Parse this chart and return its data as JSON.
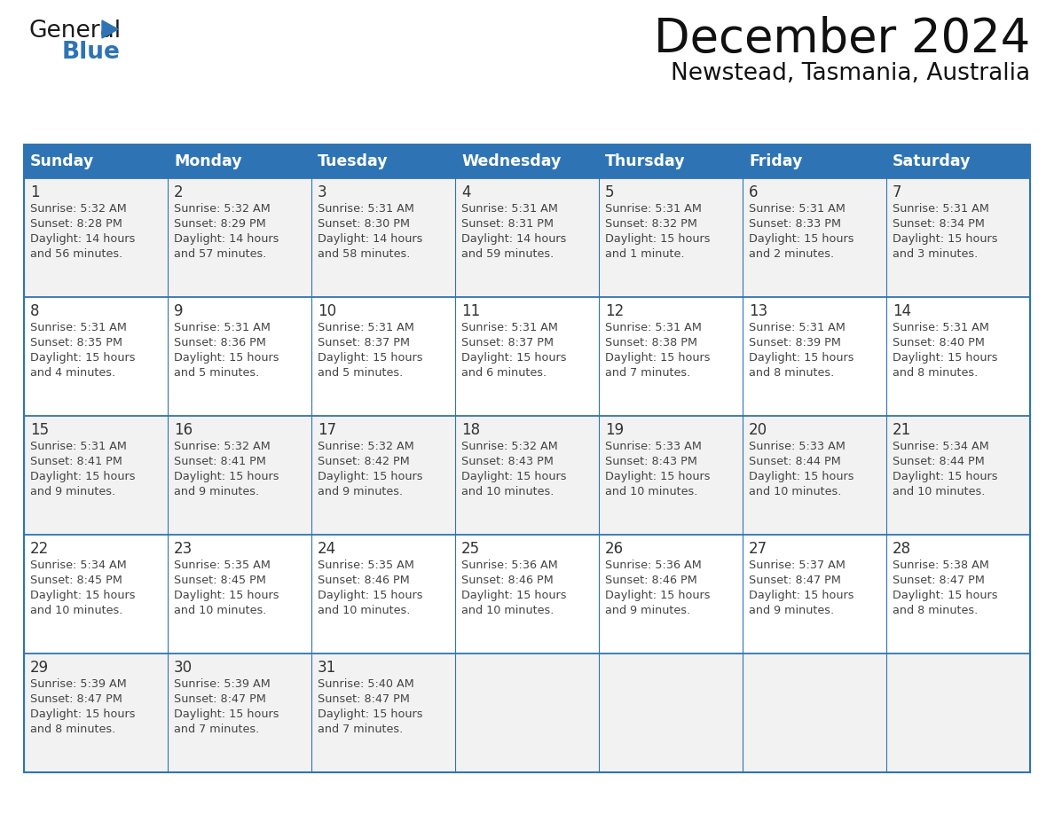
{
  "title": "December 2024",
  "subtitle": "Newstead, Tasmania, Australia",
  "days_of_week": [
    "Sunday",
    "Monday",
    "Tuesday",
    "Wednesday",
    "Thursday",
    "Friday",
    "Saturday"
  ],
  "header_bg": "#2E74B5",
  "header_text": "#FFFFFF",
  "cell_bg_odd": "#F2F2F2",
  "cell_bg_even": "#FFFFFF",
  "border_color": "#2E74B5",
  "day_num_color": "#333333",
  "text_color": "#444444",
  "calendar_data": [
    [
      {
        "day": 1,
        "sunrise": "5:32 AM",
        "sunset": "8:28 PM",
        "daylight": "14 hours and 56 minutes."
      },
      {
        "day": 2,
        "sunrise": "5:32 AM",
        "sunset": "8:29 PM",
        "daylight": "14 hours and 57 minutes."
      },
      {
        "day": 3,
        "sunrise": "5:31 AM",
        "sunset": "8:30 PM",
        "daylight": "14 hours and 58 minutes."
      },
      {
        "day": 4,
        "sunrise": "5:31 AM",
        "sunset": "8:31 PM",
        "daylight": "14 hours and 59 minutes."
      },
      {
        "day": 5,
        "sunrise": "5:31 AM",
        "sunset": "8:32 PM",
        "daylight": "15 hours and 1 minute."
      },
      {
        "day": 6,
        "sunrise": "5:31 AM",
        "sunset": "8:33 PM",
        "daylight": "15 hours and 2 minutes."
      },
      {
        "day": 7,
        "sunrise": "5:31 AM",
        "sunset": "8:34 PM",
        "daylight": "15 hours and 3 minutes."
      }
    ],
    [
      {
        "day": 8,
        "sunrise": "5:31 AM",
        "sunset": "8:35 PM",
        "daylight": "15 hours and 4 minutes."
      },
      {
        "day": 9,
        "sunrise": "5:31 AM",
        "sunset": "8:36 PM",
        "daylight": "15 hours and 5 minutes."
      },
      {
        "day": 10,
        "sunrise": "5:31 AM",
        "sunset": "8:37 PM",
        "daylight": "15 hours and 5 minutes."
      },
      {
        "day": 11,
        "sunrise": "5:31 AM",
        "sunset": "8:37 PM",
        "daylight": "15 hours and 6 minutes."
      },
      {
        "day": 12,
        "sunrise": "5:31 AM",
        "sunset": "8:38 PM",
        "daylight": "15 hours and 7 minutes."
      },
      {
        "day": 13,
        "sunrise": "5:31 AM",
        "sunset": "8:39 PM",
        "daylight": "15 hours and 8 minutes."
      },
      {
        "day": 14,
        "sunrise": "5:31 AM",
        "sunset": "8:40 PM",
        "daylight": "15 hours and 8 minutes."
      }
    ],
    [
      {
        "day": 15,
        "sunrise": "5:31 AM",
        "sunset": "8:41 PM",
        "daylight": "15 hours and 9 minutes."
      },
      {
        "day": 16,
        "sunrise": "5:32 AM",
        "sunset": "8:41 PM",
        "daylight": "15 hours and 9 minutes."
      },
      {
        "day": 17,
        "sunrise": "5:32 AM",
        "sunset": "8:42 PM",
        "daylight": "15 hours and 9 minutes."
      },
      {
        "day": 18,
        "sunrise": "5:32 AM",
        "sunset": "8:43 PM",
        "daylight": "15 hours and 10 minutes."
      },
      {
        "day": 19,
        "sunrise": "5:33 AM",
        "sunset": "8:43 PM",
        "daylight": "15 hours and 10 minutes."
      },
      {
        "day": 20,
        "sunrise": "5:33 AM",
        "sunset": "8:44 PM",
        "daylight": "15 hours and 10 minutes."
      },
      {
        "day": 21,
        "sunrise": "5:34 AM",
        "sunset": "8:44 PM",
        "daylight": "15 hours and 10 minutes."
      }
    ],
    [
      {
        "day": 22,
        "sunrise": "5:34 AM",
        "sunset": "8:45 PM",
        "daylight": "15 hours and 10 minutes."
      },
      {
        "day": 23,
        "sunrise": "5:35 AM",
        "sunset": "8:45 PM",
        "daylight": "15 hours and 10 minutes."
      },
      {
        "day": 24,
        "sunrise": "5:35 AM",
        "sunset": "8:46 PM",
        "daylight": "15 hours and 10 minutes."
      },
      {
        "day": 25,
        "sunrise": "5:36 AM",
        "sunset": "8:46 PM",
        "daylight": "15 hours and 10 minutes."
      },
      {
        "day": 26,
        "sunrise": "5:36 AM",
        "sunset": "8:46 PM",
        "daylight": "15 hours and 9 minutes."
      },
      {
        "day": 27,
        "sunrise": "5:37 AM",
        "sunset": "8:47 PM",
        "daylight": "15 hours and 9 minutes."
      },
      {
        "day": 28,
        "sunrise": "5:38 AM",
        "sunset": "8:47 PM",
        "daylight": "15 hours and 8 minutes."
      }
    ],
    [
      {
        "day": 29,
        "sunrise": "5:39 AM",
        "sunset": "8:47 PM",
        "daylight": "15 hours and 8 minutes."
      },
      {
        "day": 30,
        "sunrise": "5:39 AM",
        "sunset": "8:47 PM",
        "daylight": "15 hours and 7 minutes."
      },
      {
        "day": 31,
        "sunrise": "5:40 AM",
        "sunset": "8:47 PM",
        "daylight": "15 hours and 7 minutes."
      },
      null,
      null,
      null,
      null
    ]
  ],
  "logo_general_color": "#1a1a1a",
  "logo_blue_color": "#2E74B5",
  "logo_triangle_color": "#2E74B5"
}
